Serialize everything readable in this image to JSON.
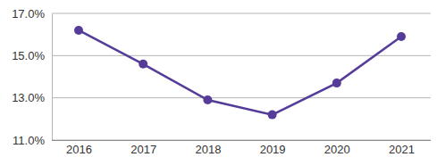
{
  "chart_data": {
    "type": "line",
    "categories": [
      "2016",
      "2017",
      "2018",
      "2019",
      "2020",
      "2021"
    ],
    "values": [
      16.2,
      14.6,
      12.9,
      12.2,
      13.7,
      15.9
    ],
    "color": "#553c99",
    "marker": "circle",
    "ylim": [
      11,
      17
    ],
    "yticks": [
      {
        "value": 11,
        "label": "11.0%"
      },
      {
        "value": 13,
        "label": "13.0%"
      },
      {
        "value": 15,
        "label": "15.0%"
      },
      {
        "value": 17,
        "label": "17.0%"
      }
    ],
    "grid": true
  }
}
